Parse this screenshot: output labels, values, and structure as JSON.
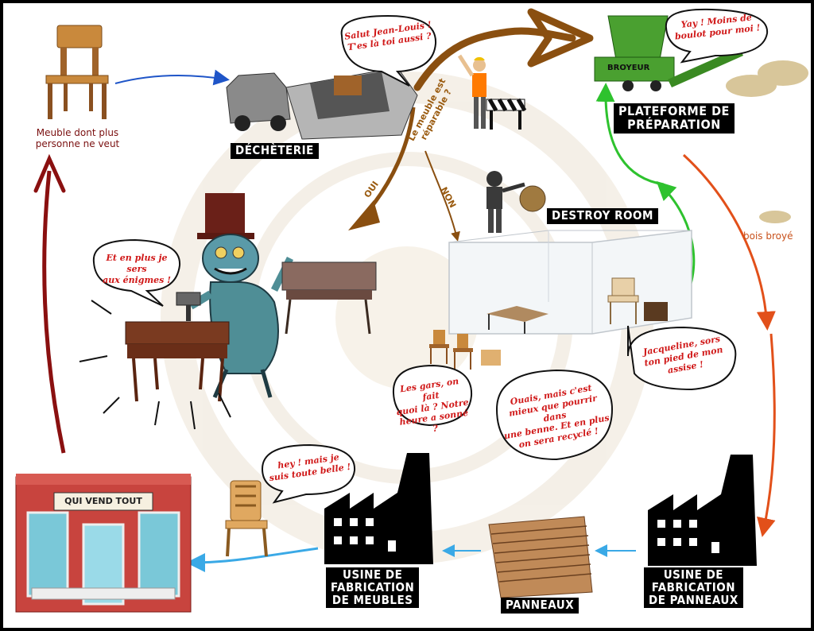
{
  "labels": {
    "decheterie": "DÉCHÈTERIE",
    "plateforme": "PLATEFORME DE\nPRÉPARATION",
    "destroy_room": "DESTROY ROOM",
    "usine_meubles": "USINE DE\nFABRICATION\nDE MEUBLES",
    "usine_panneaux": "USINE DE\nFABRICATION\nDE PANNEAUX",
    "panneaux": "PANNEAUX",
    "shop_sign": "QUI VEND TOUT",
    "broyeur": "BROYEUR"
  },
  "captions": {
    "meuble": "Meuble dont plus\npersonne ne veut",
    "bois_broye": "bois broyé"
  },
  "arrow_labels": {
    "question": "Le meuble est\nréparable ?",
    "oui": "OUI",
    "non": "NON"
  },
  "bubbles": {
    "salut": "Salut Jean-Louis !\nT'es là toi aussi ?",
    "yay": "Yay ! Moins de\nboulot pour moi !",
    "enigmes": "Et en plus je sers\naux énigmes !",
    "jacqueline": "Jacqueline, sors\nton pied de mon\nassise !",
    "les_gars": "Les gars, on fait\nquoi là ? Notre\nheure a sonné ?",
    "ouais": "Ouais, mais c'est\nmieux que pourrir dans\nune benne. Et en plus\non sera recyclé !",
    "hey": "hey ! mais je\nsuis toute belle !"
  },
  "colors": {
    "blue_arrow": "#1f55c8",
    "brown_arrow": "#8a4f10",
    "green_arrow": "#2ec22e",
    "orange_arrow": "#e2501a",
    "red_arrow": "#8a1010",
    "cyan_arrow": "#3aa9e6",
    "caption_red": "#7a1010",
    "caption_orange": "#c8501a",
    "bubble_text": "#d01818"
  }
}
